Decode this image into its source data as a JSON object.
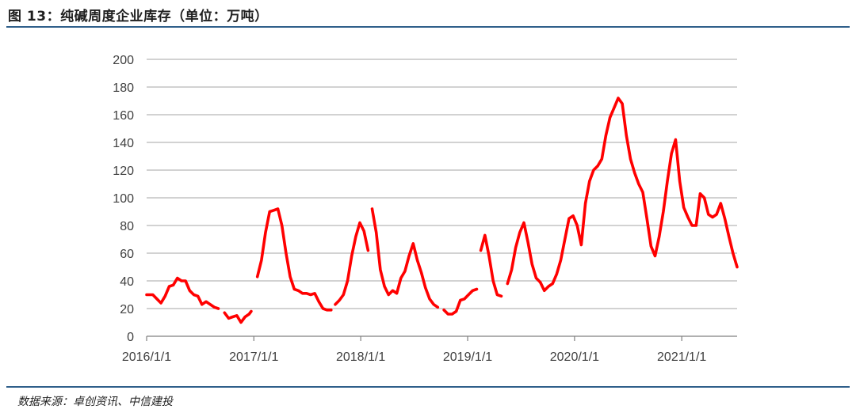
{
  "header": {
    "figure_title": "图 13：纯碱周度企业库存（单位：万吨）"
  },
  "footer": {
    "source": "数据来源：卓创资讯、中信建投"
  },
  "colors": {
    "line": "#ff0000",
    "rule": "#2f5f8a",
    "grid": "#a6a6a6",
    "axis_text": "#404040"
  },
  "chart_data": {
    "type": "line",
    "title": "图 13：纯碱周度企业库存（单位：万吨）",
    "xlabel": "",
    "ylabel": "",
    "ylim": [
      0,
      200
    ],
    "yticks": [
      0,
      20,
      40,
      60,
      80,
      100,
      120,
      140,
      160,
      180,
      200
    ],
    "xticks": [
      "2016/1/1",
      "2017/1/1",
      "2018/1/1",
      "2019/1/1",
      "2020/1/1",
      "2021/1/1"
    ],
    "grid": "horizontal",
    "legend": "none",
    "series": [
      {
        "segments": [
          [
            [
              "2016-01-01",
              30
            ],
            [
              "2016-01-22",
              30
            ],
            [
              "2016-02-05",
              27
            ],
            [
              "2016-02-19",
              24
            ],
            [
              "2016-03-04",
              29
            ],
            [
              "2016-03-18",
              36
            ],
            [
              "2016-04-01",
              37
            ],
            [
              "2016-04-15",
              42
            ],
            [
              "2016-04-29",
              40
            ],
            [
              "2016-05-13",
              40
            ],
            [
              "2016-05-27",
              33
            ],
            [
              "2016-06-10",
              30
            ],
            [
              "2016-06-24",
              29
            ],
            [
              "2016-07-08",
              23
            ],
            [
              "2016-07-22",
              25
            ],
            [
              "2016-08-05",
              23
            ],
            [
              "2016-08-19",
              21
            ],
            [
              "2016-09-02",
              20
            ]
          ],
          [
            [
              "2016-09-23",
              17
            ],
            [
              "2016-10-07",
              13
            ],
            [
              "2016-10-21",
              14
            ],
            [
              "2016-11-04",
              15
            ],
            [
              "2016-11-18",
              10
            ],
            [
              "2016-12-02",
              14
            ],
            [
              "2016-12-16",
              16
            ],
            [
              "2016-12-23",
              18
            ]
          ],
          [
            [
              "2017-01-13",
              43
            ],
            [
              "2017-01-27",
              55
            ],
            [
              "2017-02-10",
              75
            ],
            [
              "2017-02-24",
              90
            ],
            [
              "2017-03-10",
              91
            ],
            [
              "2017-03-24",
              92
            ],
            [
              "2017-04-07",
              80
            ],
            [
              "2017-04-21",
              60
            ],
            [
              "2017-05-05",
              43
            ],
            [
              "2017-05-19",
              34
            ],
            [
              "2017-06-02",
              33
            ],
            [
              "2017-06-16",
              31
            ],
            [
              "2017-06-30",
              31
            ],
            [
              "2017-07-14",
              30
            ],
            [
              "2017-07-28",
              31
            ],
            [
              "2017-08-11",
              25
            ],
            [
              "2017-08-25",
              20
            ],
            [
              "2017-09-08",
              19
            ],
            [
              "2017-09-22",
              19
            ]
          ],
          [
            [
              "2017-10-06",
              23
            ],
            [
              "2017-10-20",
              26
            ],
            [
              "2017-11-03",
              30
            ],
            [
              "2017-11-17",
              40
            ],
            [
              "2017-12-01",
              58
            ],
            [
              "2017-12-15",
              72
            ],
            [
              "2017-12-29",
              82
            ],
            [
              "2018-01-12",
              76
            ],
            [
              "2018-01-26",
              62
            ]
          ],
          [
            [
              "2018-02-09",
              92
            ],
            [
              "2018-02-23",
              75
            ],
            [
              "2018-03-09",
              48
            ],
            [
              "2018-03-23",
              36
            ],
            [
              "2018-04-06",
              30
            ],
            [
              "2018-04-20",
              33
            ],
            [
              "2018-05-04",
              31
            ],
            [
              "2018-05-18",
              42
            ],
            [
              "2018-06-01",
              47
            ],
            [
              "2018-06-15",
              58
            ],
            [
              "2018-06-29",
              67
            ],
            [
              "2018-07-13",
              55
            ],
            [
              "2018-07-27",
              46
            ],
            [
              "2018-08-10",
              35
            ],
            [
              "2018-08-24",
              27
            ],
            [
              "2018-09-07",
              23
            ],
            [
              "2018-09-21",
              21
            ]
          ],
          [
            [
              "2018-10-12",
              19
            ],
            [
              "2018-10-26",
              16
            ],
            [
              "2018-11-09",
              16
            ],
            [
              "2018-11-23",
              18
            ],
            [
              "2018-12-07",
              26
            ],
            [
              "2018-12-21",
              27
            ],
            [
              "2019-01-04",
              30
            ],
            [
              "2019-01-18",
              33
            ],
            [
              "2019-02-01",
              34
            ]
          ],
          [
            [
              "2019-02-15",
              62
            ],
            [
              "2019-03-01",
              73
            ],
            [
              "2019-03-15",
              58
            ],
            [
              "2019-03-29",
              40
            ],
            [
              "2019-04-12",
              30
            ],
            [
              "2019-04-26",
              29
            ]
          ],
          [
            [
              "2019-05-17",
              38
            ],
            [
              "2019-05-31",
              48
            ],
            [
              "2019-06-14",
              64
            ],
            [
              "2019-06-28",
              75
            ],
            [
              "2019-07-12",
              82
            ],
            [
              "2019-07-26",
              68
            ],
            [
              "2019-08-09",
              52
            ],
            [
              "2019-08-23",
              42
            ],
            [
              "2019-09-06",
              39
            ],
            [
              "2019-09-20",
              33
            ],
            [
              "2019-10-04",
              36
            ],
            [
              "2019-10-18",
              38
            ],
            [
              "2019-11-01",
              45
            ],
            [
              "2019-11-15",
              55
            ],
            [
              "2019-11-29",
              70
            ],
            [
              "2019-12-13",
              85
            ],
            [
              "2019-12-27",
              87
            ],
            [
              "2020-01-10",
              80
            ],
            [
              "2020-01-24",
              66
            ],
            [
              "2020-02-07",
              96
            ],
            [
              "2020-02-21",
              112
            ],
            [
              "2020-03-06",
              120
            ],
            [
              "2020-03-20",
              123
            ],
            [
              "2020-04-03",
              128
            ],
            [
              "2020-04-17",
              145
            ],
            [
              "2020-05-01",
              158
            ],
            [
              "2020-05-15",
              165
            ],
            [
              "2020-05-29",
              172
            ],
            [
              "2020-06-12",
              168
            ],
            [
              "2020-06-26",
              145
            ],
            [
              "2020-07-10",
              128
            ],
            [
              "2020-07-24",
              118
            ],
            [
              "2020-08-07",
              110
            ],
            [
              "2020-08-21",
              104
            ],
            [
              "2020-09-04",
              85
            ],
            [
              "2020-09-18",
              65
            ],
            [
              "2020-10-02",
              58
            ],
            [
              "2020-10-16",
              72
            ],
            [
              "2020-10-30",
              90
            ],
            [
              "2020-11-13",
              112
            ],
            [
              "2020-11-27",
              132
            ],
            [
              "2020-12-11",
              142
            ],
            [
              "2020-12-25",
              112
            ],
            [
              "2021-01-08",
              93
            ],
            [
              "2021-01-22",
              86
            ],
            [
              "2021-02-05",
              80
            ],
            [
              "2021-02-19",
              80
            ],
            [
              "2021-03-05",
              103
            ],
            [
              "2021-03-19",
              100
            ],
            [
              "2021-04-02",
              88
            ],
            [
              "2021-04-16",
              86
            ],
            [
              "2021-04-30",
              88
            ],
            [
              "2021-05-14",
              96
            ],
            [
              "2021-05-28",
              85
            ],
            [
              "2021-06-11",
              72
            ],
            [
              "2021-06-25",
              60
            ],
            [
              "2021-07-09",
              50
            ]
          ]
        ]
      }
    ]
  }
}
